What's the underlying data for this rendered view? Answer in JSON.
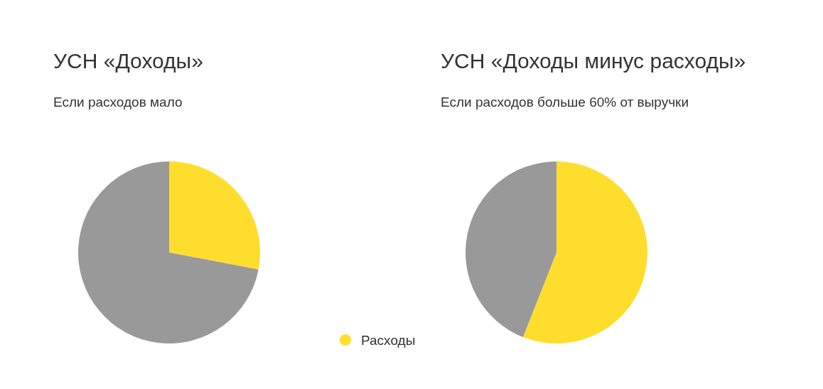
{
  "chart_data": [
    {
      "type": "pie",
      "title": "УСН «Доходы»",
      "subtitle": "Если расходов мало",
      "categories": [
        "Расходы",
        null
      ],
      "values": [
        28,
        72
      ],
      "colors": [
        "#ffdd2d",
        "#999999"
      ],
      "legend": "bottom right"
    },
    {
      "type": "pie",
      "title": "УСН «Доходы минус расходы»",
      "subtitle": "Если расходов больше 60% от выручки",
      "categories": [
        null,
        null
      ],
      "values": [
        56,
        44
      ],
      "colors": [
        "#ffdd2d",
        "#999999"
      ]
    }
  ]
}
